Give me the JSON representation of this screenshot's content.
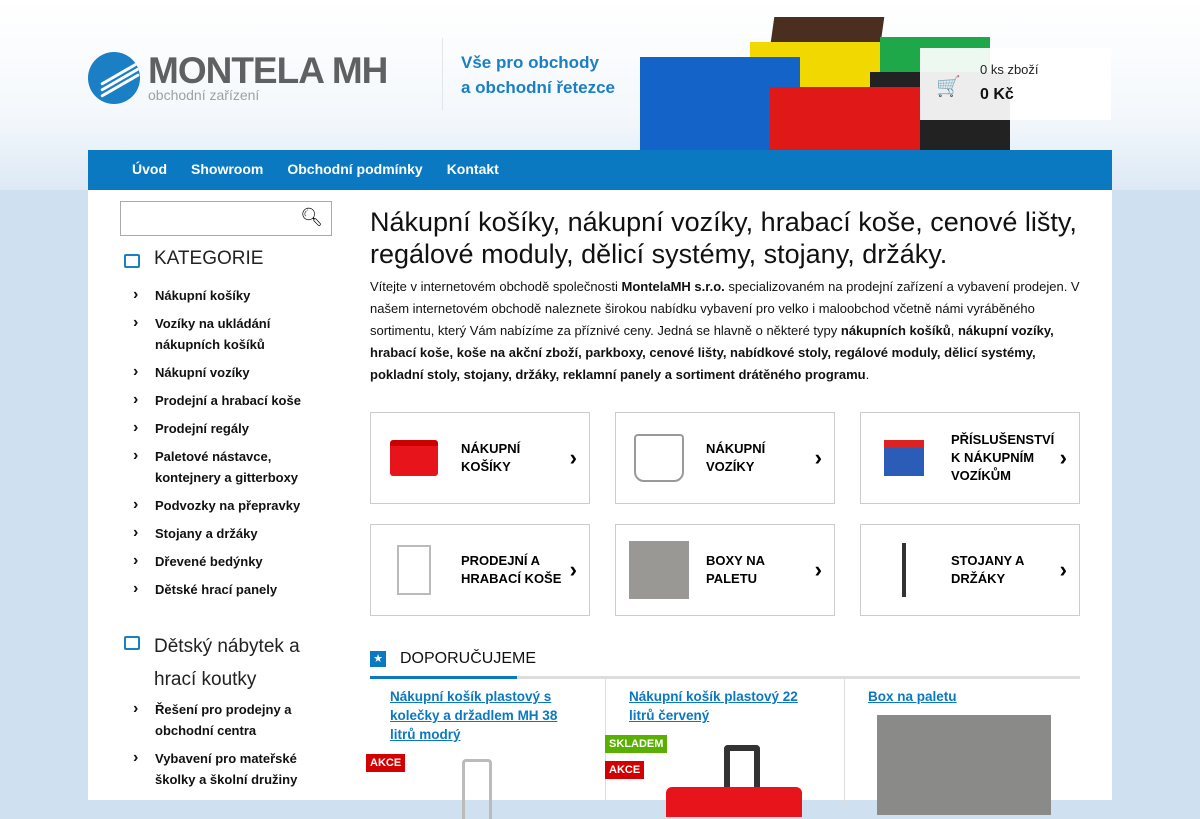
{
  "header": {
    "logo_text": "MONTELA MH",
    "logo_sub": "obchodní zařízení",
    "slogan_line1": "Vše pro obchody",
    "slogan_line2": "a obchodní řetezce"
  },
  "cart": {
    "icon": "cart-icon",
    "count": "0 ks zboží",
    "total": "0 Kč"
  },
  "nav": [
    {
      "label": "Úvod"
    },
    {
      "label": "Showroom"
    },
    {
      "label": "Obchodní podmínky"
    },
    {
      "label": "Kontakt"
    }
  ],
  "search": {
    "placeholder": "",
    "value": ""
  },
  "sidebar": {
    "cat1_title": "KATEGORIE",
    "cat1_items": [
      "Nákupní košíky",
      "Vozíky na ukládání nákupních košíků",
      "Nákupní vozíky",
      "Prodejní a hrabací koše",
      "Prodejní regály",
      "Paletové nástavce, kontejnery a gitterboxy",
      "Podvozky na přepravky",
      "Stojany a držáky",
      "Dřevené bedýnky",
      "Dětské hrací panely"
    ],
    "cat2_title": "Dětský nábytek a hrací koutky",
    "cat2_items": [
      "Řešení pro prodejny a obchodní centra",
      "Vybavení pro mateřské školky a školní družiny"
    ]
  },
  "main": {
    "title": "Nákupní košíky, nákupní vozíky, hrabací koše, cenové lišty, regálové moduly, dělicí systémy, stojany, držáky.",
    "intro_a": "Vítejte v internetovém obchodě společnosti ",
    "intro_b": "MontelaMH s.r.o.",
    "intro_c": " specializovaném na prodejní zařízení a vybavení prodejen. V našem internetovém obchodě naleznete širokou nabídku vybavení pro velko i maloobchod včetně námi vyráběného sortimentu, který Vám nabízíme za příznivé ceny. Jedná se hlavně o některé typy ",
    "intro_d": "nákupních košíků",
    "intro_e": ", ",
    "intro_f": "nákupní vozíky, hrabací koše, koše na akční zboží, parkboxy, cenové lišty, nabídkové stoly, regálové moduly, dělicí systémy, pokladní stoly, stojany, držáky, reklamní panely a sortiment drátěného programu",
    "intro_g": ".",
    "tiles": [
      {
        "label": "Nákupní košíky"
      },
      {
        "label": "Nákupní vozíky"
      },
      {
        "label": "Příslušenství k nákupním vozíkům"
      },
      {
        "label": "Prodejní a hrabací koše"
      },
      {
        "label": "Boxy na paletu"
      },
      {
        "label": "Stojany a držáky"
      }
    ]
  },
  "recommended": {
    "title": "DOPORUČUJEME",
    "products": [
      {
        "name": "Nákupní košík plastový s kolečky a držadlem MH 38 litrů modrý",
        "badges": [
          "AKCE"
        ]
      },
      {
        "name": "Nákupní košík plastový 22 litrů červený",
        "badges": [
          "SKLADEM",
          "AKCE"
        ]
      },
      {
        "name": "Box na paletu",
        "badges": []
      }
    ]
  },
  "colors": {
    "brand_blue": "#0b78c2",
    "akce": "#d20000",
    "skladem": "#5ab000"
  }
}
